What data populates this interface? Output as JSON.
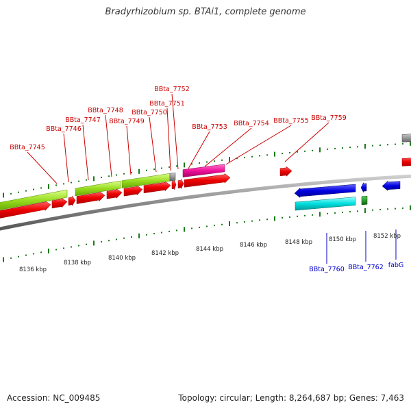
{
  "title": "Bradyrhizobium sp. BTAi1, complete genome",
  "footer": {
    "accession": "Accession: NC_009485",
    "summary": "Topology: circular; Length: 8,264,687 bp; Genes: 7,463"
  },
  "scale_labels": [
    "8136 kbp",
    "8138 kbp",
    "8140 kbp",
    "8142 kbp",
    "8144 kbp",
    "8146 kbp",
    "8148 kbp",
    "8150 kbp",
    "8152 kbp"
  ],
  "top_gene_labels": [
    "BBta_7745",
    "BBta_7746",
    "BBta_7747",
    "BBta_7748",
    "BBta_7749",
    "BBta_7750",
    "BBta_7751",
    "BBta_7752",
    "BBta_7753",
    "BBta_7754",
    "BBta_7755",
    "BBta_7759"
  ],
  "bottom_gene_labels": [
    "BBta_7760",
    "BBta_7762",
    "fabG"
  ],
  "colors": {
    "label_top": "#cc0000",
    "label_bottom": "#0000cc",
    "ticks": "#1a7a1a",
    "backbone": "#888888",
    "gene_red": "#ee0000",
    "gene_lime": "#99dd22",
    "gene_magenta": "#ee1199",
    "gene_blue": "#0000dd",
    "gene_cyan": "#00dddd",
    "gene_green": "#118811",
    "gene_gray": "#777777"
  }
}
